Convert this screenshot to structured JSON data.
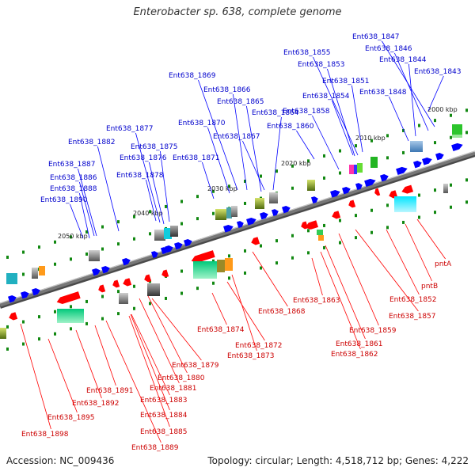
{
  "title": "Enterobacter sp. 638, complete genome",
  "footer": {
    "accession": "Accession: NC_009436",
    "topology": "Topology: circular; Length: 4,518,712 bp; Genes: 4,222"
  },
  "colors": {
    "plus_strand": "#0000ff",
    "minus_strand": "#ff0000",
    "backbone": "#777777",
    "tick": "#118811"
  },
  "scale_labels": [
    "2000 kbp",
    "2010 kbp",
    "2020 kbp",
    "2030 kbp",
    "2040 kbp",
    "2050 kbp"
  ],
  "gene_labels_top": [
    "Ent638_1847",
    "Ent638_1846",
    "Ent638_1844",
    "Ent638_1843",
    "Ent638_1855",
    "Ent638_1853",
    "Ent638_1851",
    "Ent638_1854",
    "Ent638_1848",
    "Ent638_1869",
    "Ent638_1866",
    "Ent638_1865",
    "Ent638_1864",
    "Ent638_1858",
    "Ent638_1870",
    "Ent638_1860",
    "Ent638_1867",
    "Ent638_1877",
    "Ent638_1882",
    "Ent638_1875",
    "Ent638_1871",
    "Ent638_1876",
    "Ent638_1887",
    "Ent638_1878",
    "Ent638_1886",
    "Ent638_1888",
    "Ent638_1890"
  ],
  "gene_labels_bottom": [
    "pntA",
    "pntB",
    "Ent638_1852",
    "Ent638_1857",
    "Ent638_1863",
    "Ent638_1859",
    "Ent638_1861",
    "Ent638_1862",
    "Ent638_1868",
    "Ent638_1874",
    "Ent638_1872",
    "Ent638_1873",
    "Ent638_1879",
    "Ent638_1880",
    "Ent638_1881",
    "Ent638_1891",
    "Ent638_1883",
    "Ent638_1892",
    "Ent638_1884",
    "Ent638_1895",
    "Ent638_1885",
    "Ent638_1898",
    "Ent638_1889"
  ]
}
